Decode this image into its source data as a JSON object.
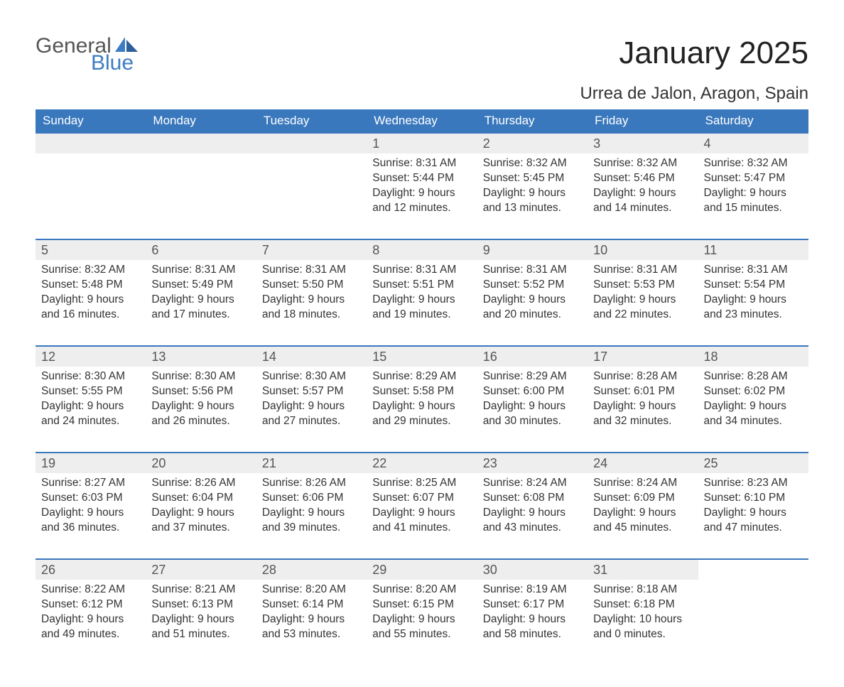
{
  "brand": {
    "word1": "General",
    "word2": "Blue"
  },
  "title": "January 2025",
  "location": "Urrea de Jalon, Aragon, Spain",
  "colors": {
    "header_bg": "#3a78bd",
    "row_border": "#3a78bd",
    "daynum_bg": "#eeeeee",
    "brand_blue": "#3d7cc4"
  },
  "layout": {
    "type": "calendar-month",
    "columns": 7,
    "rows": 5,
    "first_weekday_index": 3,
    "days_in_month": 31
  },
  "weekdays": [
    "Sunday",
    "Monday",
    "Tuesday",
    "Wednesday",
    "Thursday",
    "Friday",
    "Saturday"
  ],
  "days": [
    {
      "n": 1,
      "sunrise": "8:31 AM",
      "sunset": "5:44 PM",
      "daylight": "9 hours and 12 minutes."
    },
    {
      "n": 2,
      "sunrise": "8:32 AM",
      "sunset": "5:45 PM",
      "daylight": "9 hours and 13 minutes."
    },
    {
      "n": 3,
      "sunrise": "8:32 AM",
      "sunset": "5:46 PM",
      "daylight": "9 hours and 14 minutes."
    },
    {
      "n": 4,
      "sunrise": "8:32 AM",
      "sunset": "5:47 PM",
      "daylight": "9 hours and 15 minutes."
    },
    {
      "n": 5,
      "sunrise": "8:32 AM",
      "sunset": "5:48 PM",
      "daylight": "9 hours and 16 minutes."
    },
    {
      "n": 6,
      "sunrise": "8:31 AM",
      "sunset": "5:49 PM",
      "daylight": "9 hours and 17 minutes."
    },
    {
      "n": 7,
      "sunrise": "8:31 AM",
      "sunset": "5:50 PM",
      "daylight": "9 hours and 18 minutes."
    },
    {
      "n": 8,
      "sunrise": "8:31 AM",
      "sunset": "5:51 PM",
      "daylight": "9 hours and 19 minutes."
    },
    {
      "n": 9,
      "sunrise": "8:31 AM",
      "sunset": "5:52 PM",
      "daylight": "9 hours and 20 minutes."
    },
    {
      "n": 10,
      "sunrise": "8:31 AM",
      "sunset": "5:53 PM",
      "daylight": "9 hours and 22 minutes."
    },
    {
      "n": 11,
      "sunrise": "8:31 AM",
      "sunset": "5:54 PM",
      "daylight": "9 hours and 23 minutes."
    },
    {
      "n": 12,
      "sunrise": "8:30 AM",
      "sunset": "5:55 PM",
      "daylight": "9 hours and 24 minutes."
    },
    {
      "n": 13,
      "sunrise": "8:30 AM",
      "sunset": "5:56 PM",
      "daylight": "9 hours and 26 minutes."
    },
    {
      "n": 14,
      "sunrise": "8:30 AM",
      "sunset": "5:57 PM",
      "daylight": "9 hours and 27 minutes."
    },
    {
      "n": 15,
      "sunrise": "8:29 AM",
      "sunset": "5:58 PM",
      "daylight": "9 hours and 29 minutes."
    },
    {
      "n": 16,
      "sunrise": "8:29 AM",
      "sunset": "6:00 PM",
      "daylight": "9 hours and 30 minutes."
    },
    {
      "n": 17,
      "sunrise": "8:28 AM",
      "sunset": "6:01 PM",
      "daylight": "9 hours and 32 minutes."
    },
    {
      "n": 18,
      "sunrise": "8:28 AM",
      "sunset": "6:02 PM",
      "daylight": "9 hours and 34 minutes."
    },
    {
      "n": 19,
      "sunrise": "8:27 AM",
      "sunset": "6:03 PM",
      "daylight": "9 hours and 36 minutes."
    },
    {
      "n": 20,
      "sunrise": "8:26 AM",
      "sunset": "6:04 PM",
      "daylight": "9 hours and 37 minutes."
    },
    {
      "n": 21,
      "sunrise": "8:26 AM",
      "sunset": "6:06 PM",
      "daylight": "9 hours and 39 minutes."
    },
    {
      "n": 22,
      "sunrise": "8:25 AM",
      "sunset": "6:07 PM",
      "daylight": "9 hours and 41 minutes."
    },
    {
      "n": 23,
      "sunrise": "8:24 AM",
      "sunset": "6:08 PM",
      "daylight": "9 hours and 43 minutes."
    },
    {
      "n": 24,
      "sunrise": "8:24 AM",
      "sunset": "6:09 PM",
      "daylight": "9 hours and 45 minutes."
    },
    {
      "n": 25,
      "sunrise": "8:23 AM",
      "sunset": "6:10 PM",
      "daylight": "9 hours and 47 minutes."
    },
    {
      "n": 26,
      "sunrise": "8:22 AM",
      "sunset": "6:12 PM",
      "daylight": "9 hours and 49 minutes."
    },
    {
      "n": 27,
      "sunrise": "8:21 AM",
      "sunset": "6:13 PM",
      "daylight": "9 hours and 51 minutes."
    },
    {
      "n": 28,
      "sunrise": "8:20 AM",
      "sunset": "6:14 PM",
      "daylight": "9 hours and 53 minutes."
    },
    {
      "n": 29,
      "sunrise": "8:20 AM",
      "sunset": "6:15 PM",
      "daylight": "9 hours and 55 minutes."
    },
    {
      "n": 30,
      "sunrise": "8:19 AM",
      "sunset": "6:17 PM",
      "daylight": "9 hours and 58 minutes."
    },
    {
      "n": 31,
      "sunrise": "8:18 AM",
      "sunset": "6:18 PM",
      "daylight": "10 hours and 0 minutes."
    }
  ],
  "labels": {
    "sunrise": "Sunrise:",
    "sunset": "Sunset:",
    "daylight": "Daylight:"
  }
}
